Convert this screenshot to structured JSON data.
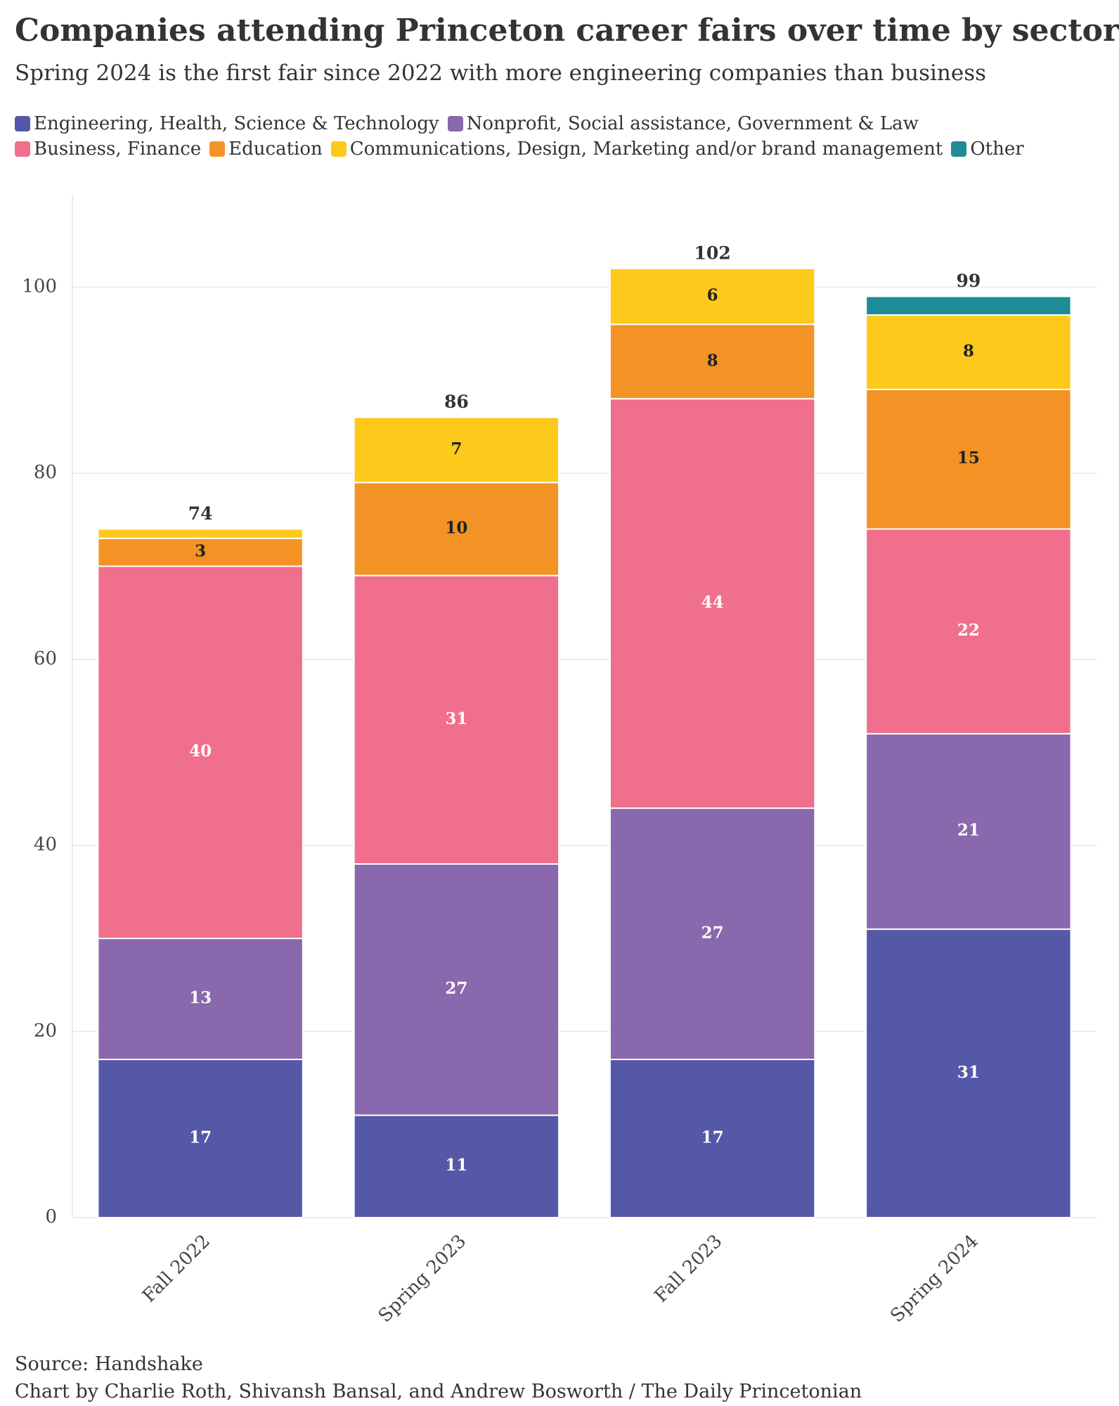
{
  "chart_data": {
    "type": "stacked_bar",
    "title": "Companies attending Princeton career fairs over time by sector",
    "subtitle": "Spring 2024 is the first fair since 2022 with more engineering companies than business",
    "categories": [
      "Fall 2022",
      "Spring 2023",
      "Fall 2023",
      "Spring 2024"
    ],
    "series": [
      {
        "name": "Engineering, Health, Science & Technology",
        "color": "#5558a6",
        "label_color": "#ffffff",
        "values": [
          17,
          11,
          17,
          31
        ]
      },
      {
        "name": "Nonprofit, Social assistance, Government & Law",
        "color": "#8a68ad",
        "label_color": "#ffffff",
        "values": [
          13,
          27,
          27,
          21
        ]
      },
      {
        "name": "Business, Finance",
        "color": "#f06f8c",
        "label_color": "#ffffff",
        "values": [
          40,
          31,
          44,
          22
        ]
      },
      {
        "name": "Education",
        "color": "#f39325",
        "label_color": "#222222",
        "values": [
          3,
          10,
          8,
          15
        ]
      },
      {
        "name": "Communications, Design, Marketing and/or brand management",
        "color": "#fdc91b",
        "label_color": "#222222",
        "values": [
          1,
          7,
          6,
          8
        ]
      },
      {
        "name": "Other",
        "color": "#1e8c96",
        "label_color": "#ffffff",
        "values": [
          null,
          null,
          null,
          2
        ]
      }
    ],
    "totals": [
      74,
      86,
      102,
      99
    ],
    "ylim": [
      0,
      110
    ],
    "yticks": [
      0,
      20,
      40,
      60,
      80,
      100
    ],
    "grid": true,
    "source": "Source: Handshake",
    "credit": "Chart by Charlie Roth, Shivansh Bansal, and Andrew Bosworth / The Daily Princetonian"
  }
}
